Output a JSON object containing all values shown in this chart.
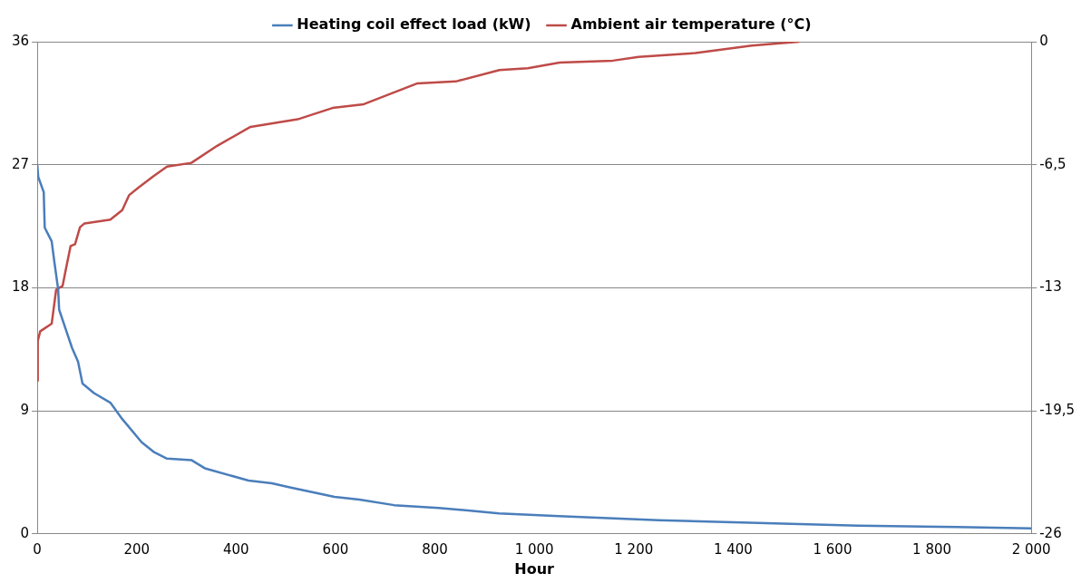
{
  "chart_data": {
    "type": "line",
    "xlabel": "Hour",
    "legend": "top",
    "grid": "y",
    "marker": "none",
    "xlim": [
      0,
      2000
    ],
    "xticks": [
      0,
      200,
      400,
      600,
      800,
      {
        "value": 1000,
        "label": "1 000"
      },
      {
        "value": 1200,
        "label": "1 200"
      },
      {
        "value": 1400,
        "label": "1 400"
      },
      {
        "value": 1600,
        "label": "1 600"
      },
      {
        "value": 1800,
        "label": "1 800"
      },
      {
        "value": 2000,
        "label": "2 000"
      }
    ],
    "ylim": [
      0,
      36
    ],
    "yticks": [
      0,
      9,
      18,
      27,
      36
    ],
    "y2lim": [
      -26,
      0
    ],
    "y2ticks": [
      -26,
      {
        "value": -19.5,
        "label": "-19,5"
      },
      -13,
      {
        "value": -6.5,
        "label": "-6,5"
      },
      0
    ],
    "series": [
      {
        "name": "Heating coil effect load (kW)",
        "color": "#4a7ebb",
        "x": [
          0,
          2,
          13,
          15,
          29,
          34,
          42,
          44,
          57,
          70,
          82,
          91,
          114,
          147,
          171,
          210,
          234,
          261,
          310,
          337,
          425,
          472,
          508,
          598,
          648,
          718,
          808,
          929,
          1050,
          1250,
          1450,
          1651,
          1851,
          2000
        ],
        "values": [
          27.0,
          26.1,
          25.0,
          22.4,
          21.4,
          20.0,
          17.9,
          16.4,
          15.0,
          13.6,
          12.6,
          11.0,
          10.3,
          9.6,
          8.4,
          6.7,
          6.0,
          5.5,
          5.4,
          4.8,
          3.9,
          3.7,
          3.4,
          2.7,
          2.5,
          2.1,
          1.9,
          1.5,
          1.3,
          1.0,
          0.8,
          0.6,
          0.5,
          0.4
        ]
      },
      {
        "name": "Ambient air temperature (°C)",
        "color": "#be4b48",
        "axis": "y2",
        "x": [
          0,
          1,
          6,
          29,
          38,
          51,
          57,
          67,
          76,
          86,
          95,
          147,
          171,
          185,
          204,
          234,
          261,
          310,
          362,
          429,
          524,
          594,
          657,
          765,
          842,
          930,
          987,
          1051,
          1158,
          1210,
          1324,
          1438,
          1533
        ],
        "values": [
          -17.9,
          -15.8,
          -15.3,
          -14.9,
          -13.1,
          -12.9,
          -12.1,
          -10.8,
          -10.7,
          -9.8,
          -9.6,
          -9.4,
          -8.9,
          -8.1,
          -7.7,
          -7.1,
          -6.6,
          -6.4,
          -5.5,
          -4.5,
          -4.1,
          -3.5,
          -3.3,
          -2.2,
          -2.1,
          -1.5,
          -1.4,
          -1.1,
          -1.0,
          -0.8,
          -0.6,
          -0.2,
          0
        ]
      }
    ]
  }
}
